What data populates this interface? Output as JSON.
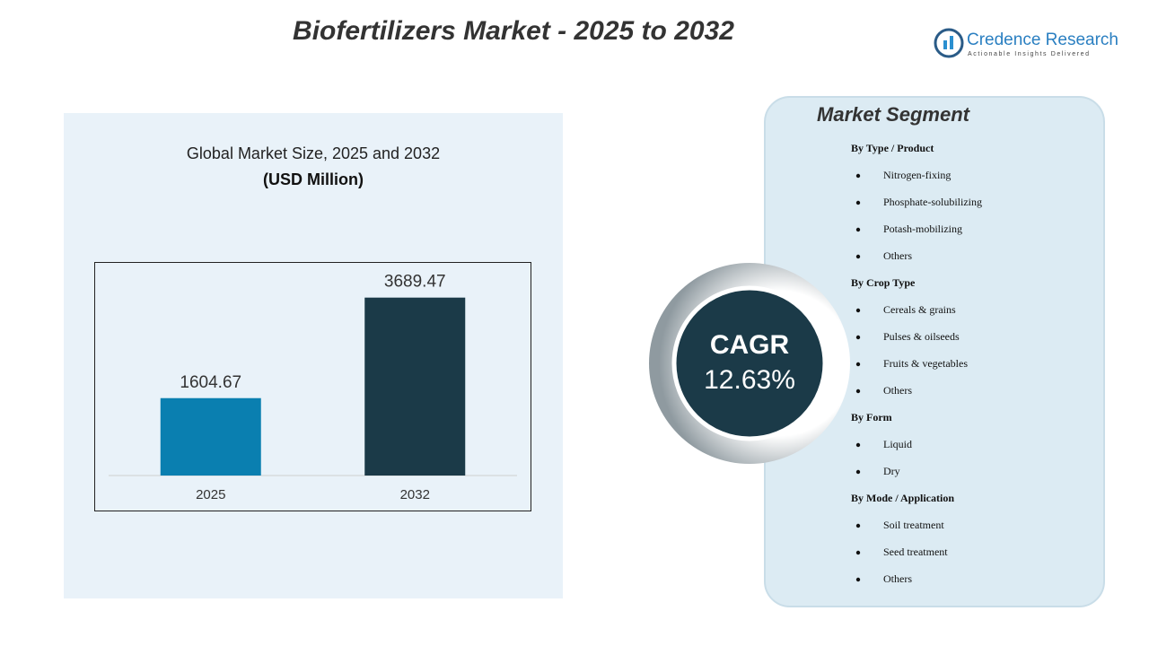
{
  "header": {
    "title": "Biofertilizers Market - 2025 to 2032",
    "logo_name": "Credence Research",
    "logo_tagline": "Actionable Insights Delivered"
  },
  "chart_data": {
    "type": "bar",
    "title": "Global Market Size, 2025 and 2032",
    "subtitle": "(USD Million)",
    "categories": [
      "2025",
      "2032"
    ],
    "series": [
      {
        "name": "Market Size",
        "colors": [
          "#0a7fb0",
          "#1b3a48"
        ],
        "values": [
          1604.67,
          3689.47
        ]
      }
    ],
    "ylim": [
      0,
      4000
    ]
  },
  "cagr": {
    "label": "CAGR",
    "value": "12.63%"
  },
  "segments": {
    "title": "Market Segment",
    "groups": [
      {
        "heading": "By Type / Product",
        "items": [
          "Nitrogen-fixing",
          "Phosphate-solubilizing",
          "Potash-mobilizing",
          "Others"
        ]
      },
      {
        "heading": "By Crop Type",
        "items": [
          "Cereals & grains",
          "Pulses & oilseeds",
          "Fruits & vegetables",
          "Others"
        ]
      },
      {
        "heading": "By Form",
        "items": [
          "Liquid",
          "Dry"
        ]
      },
      {
        "heading": "By Mode / Application",
        "items": [
          "Soil treatment",
          "Seed treatment",
          "Others"
        ]
      }
    ]
  }
}
